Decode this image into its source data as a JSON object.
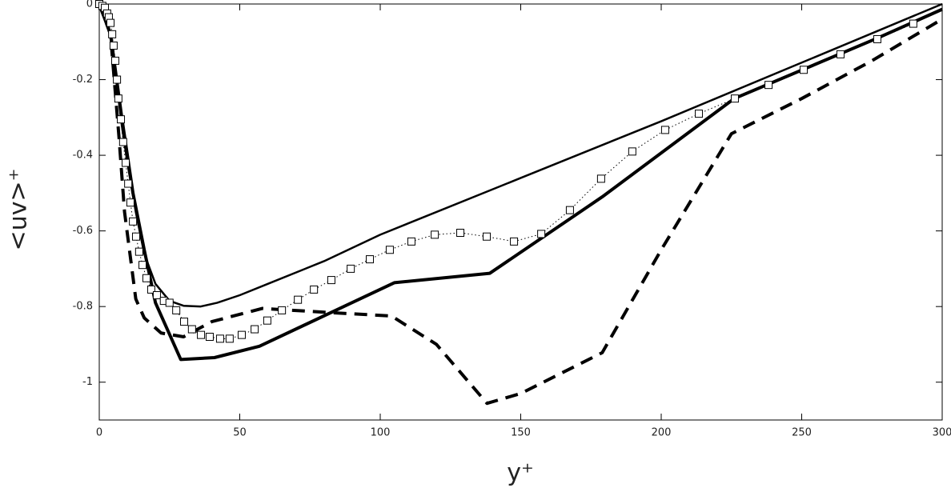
{
  "chart_data": {
    "type": "line",
    "xlabel": "y⁺",
    "ylabel": "<uv>⁺",
    "xlim": [
      0,
      300
    ],
    "ylim": [
      -1.1,
      0
    ],
    "xticks": [
      0,
      50,
      100,
      150,
      200,
      250,
      300
    ],
    "yticks": [
      0,
      -0.2,
      -0.4,
      -0.6,
      -0.8,
      -1
    ],
    "series": [
      {
        "color": "#000000",
        "style": "solid",
        "width": 2.5,
        "x": [
          0,
          2,
          4,
          6,
          8,
          10,
          13,
          16,
          20,
          25,
          30,
          36,
          42,
          50,
          60,
          80,
          100,
          150,
          200,
          250,
          300
        ],
        "values": [
          0,
          -0.02,
          -0.08,
          -0.2,
          -0.32,
          -0.42,
          -0.55,
          -0.66,
          -0.74,
          -0.785,
          -0.798,
          -0.8,
          -0.79,
          -0.77,
          -0.74,
          -0.68,
          -0.61,
          -0.46,
          -0.31,
          -0.155,
          0
        ]
      },
      {
        "color": "#000000",
        "style": "solid",
        "width": 4,
        "x": [
          0,
          4,
          8,
          12,
          16,
          20,
          29,
          41,
          57,
          105,
          139,
          179,
          226,
          277,
          300
        ],
        "values": [
          0,
          -0.08,
          -0.3,
          -0.5,
          -0.65,
          -0.79,
          -0.94,
          -0.935,
          -0.905,
          -0.737,
          -0.712,
          -0.51,
          -0.25,
          -0.09,
          -0.014
        ]
      },
      {
        "color": "#000000",
        "style": "dashed",
        "width": 4,
        "x": [
          0,
          4,
          7,
          9,
          13,
          16,
          22,
          30,
          40,
          58,
          80,
          104,
          120,
          138,
          150,
          179,
          200,
          225,
          250,
          275,
          300
        ],
        "values": [
          0,
          -0.08,
          -0.35,
          -0.55,
          -0.78,
          -0.83,
          -0.87,
          -0.88,
          -0.84,
          -0.805,
          -0.815,
          -0.825,
          -0.9,
          -1.056,
          -1.03,
          -0.922,
          -0.65,
          -0.343,
          -0.25,
          -0.15,
          -0.04
        ]
      },
      {
        "color": "#000000",
        "style": "dotted",
        "width": 1,
        "marker": "square",
        "x": [
          0,
          1.1,
          2,
          2.8,
          3.4,
          4,
          4.6,
          5.1,
          5.7,
          6.3,
          6.8,
          7.7,
          8.5,
          9.4,
          10.3,
          11.1,
          12,
          13.1,
          14.2,
          15.4,
          16.8,
          18.5,
          20.5,
          23,
          25,
          27.4,
          30.2,
          33,
          36.2,
          39.3,
          43,
          46.4,
          50.7,
          55.3,
          59.8,
          65,
          70.7,
          76.4,
          82.6,
          89.5,
          96.3,
          103.4,
          111.1,
          119.4,
          128.5,
          137.9,
          147.6,
          157.3,
          167.5,
          178.6,
          189.7,
          201.4,
          213.4,
          226.2,
          238.2,
          250.7,
          263.8,
          276.9,
          289.7
        ],
        "values": [
          0,
          -0.005,
          -0.01,
          -0.025,
          -0.035,
          -0.05,
          -0.08,
          -0.11,
          -0.15,
          -0.2,
          -0.25,
          -0.305,
          -0.365,
          -0.42,
          -0.475,
          -0.525,
          -0.575,
          -0.615,
          -0.655,
          -0.69,
          -0.725,
          -0.755,
          -0.77,
          -0.785,
          -0.79,
          -0.81,
          -0.84,
          -0.86,
          -0.875,
          -0.88,
          -0.885,
          -0.885,
          -0.875,
          -0.86,
          -0.837,
          -0.81,
          -0.782,
          -0.755,
          -0.73,
          -0.7,
          -0.675,
          -0.65,
          -0.628,
          -0.61,
          -0.605,
          -0.615,
          -0.628,
          -0.608,
          -0.545,
          -0.462,
          -0.39,
          -0.333,
          -0.29,
          -0.25,
          -0.214,
          -0.174,
          -0.133,
          -0.093,
          -0.052
        ]
      }
    ]
  }
}
